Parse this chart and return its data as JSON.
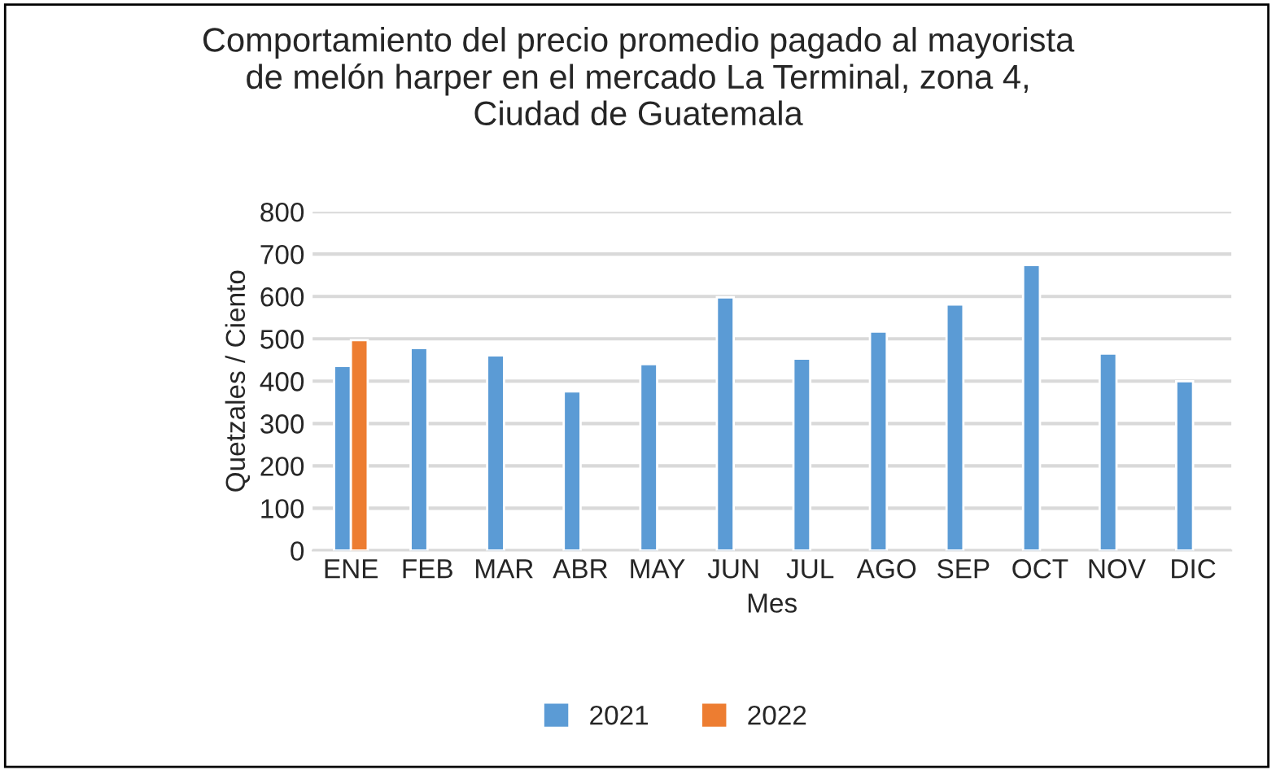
{
  "chart_data": {
    "type": "bar",
    "title": "Comportamiento del precio promedio pagado al mayorista\nde melón harper en el mercado La Terminal, zona 4,\nCiudad de Guatemala",
    "xlabel": "Mes",
    "ylabel": "Quetzales / Ciento",
    "categories": [
      "ENE",
      "FEB",
      "MAR",
      "ABR",
      "MAY",
      "JUN",
      "JUL",
      "AGO",
      "SEP",
      "OCT",
      "NOV",
      "DIC"
    ],
    "series": [
      {
        "name": "2021",
        "color": "#5b9bd5",
        "values": [
          436,
          478,
          461,
          376,
          440,
          598,
          453,
          517,
          581,
          674,
          465,
          400
        ]
      },
      {
        "name": "2022",
        "color": "#ed7d31",
        "values": [
          497,
          null,
          null,
          null,
          null,
          null,
          null,
          null,
          null,
          null,
          null,
          null
        ]
      }
    ],
    "ylim": [
      0,
      800
    ],
    "yticks": [
      0,
      100,
      200,
      300,
      400,
      500,
      600,
      700,
      800
    ],
    "grid": "y",
    "legend": "bottom"
  }
}
